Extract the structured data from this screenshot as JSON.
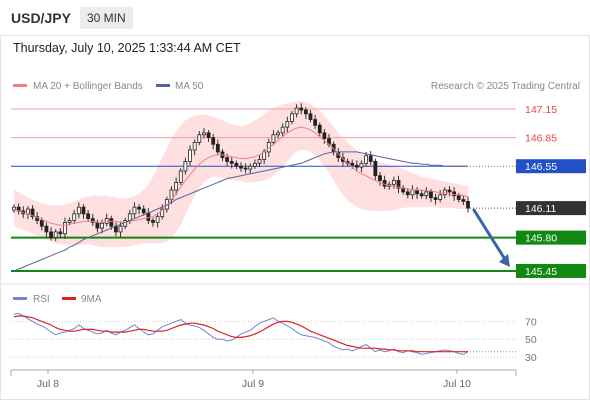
{
  "header": {
    "symbol": "USD/JPY",
    "timeframe": "30 MIN",
    "datetime": "Thursday, July 10, 2025 1:33:44 AM CET"
  },
  "legend": {
    "ma20": "MA 20 + Bollinger Bands",
    "ma50": "MA 50",
    "credit": "Research © 2025 Trading Central",
    "rsi": "RSI",
    "rsi_ma": "9MA"
  },
  "colors": {
    "resistance": "#e44a4a",
    "pivot": "#2250c8",
    "support": "#118811",
    "last": "#333333",
    "ma20": "#f08080",
    "ma50": "#556699",
    "band_fill": "#ffe0e0",
    "arrow": "#3a66a8",
    "rsi": "#6f86d6",
    "rsi_ma": "#dd2222"
  },
  "chart_data": [
    {
      "type": "candlestick",
      "instrument": "USD/JPY",
      "timeframe": "30 MIN",
      "x_labels": [
        "Jul 8",
        "Jul 9",
        "Jul 10"
      ],
      "ylim": [
        145.25,
        147.35
      ],
      "levels": [
        {
          "value": 147.15,
          "label": "147.15",
          "kind": "resistance"
        },
        {
          "value": 146.85,
          "label": "146.85",
          "kind": "resistance"
        },
        {
          "value": 146.55,
          "label": "146.55",
          "kind": "pivot"
        },
        {
          "value": 146.11,
          "label": "146.11",
          "kind": "last"
        },
        {
          "value": 145.8,
          "label": "145.80",
          "kind": "support"
        },
        {
          "value": 145.45,
          "label": "145.45",
          "kind": "support"
        }
      ],
      "close": [
        146.12,
        146.08,
        146.05,
        146.1,
        146.02,
        145.98,
        145.92,
        145.86,
        145.8,
        145.86,
        145.84,
        145.96,
        145.98,
        146.05,
        146.12,
        146.05,
        146.0,
        145.96,
        145.9,
        145.95,
        146.0,
        145.92,
        145.86,
        145.92,
        145.98,
        146.05,
        146.12,
        146.1,
        146.06,
        145.98,
        145.96,
        146.02,
        146.1,
        146.2,
        146.3,
        146.38,
        146.5,
        146.6,
        146.72,
        146.8,
        146.88,
        146.9,
        146.85,
        146.78,
        146.7,
        146.64,
        146.6,
        146.58,
        146.55,
        146.53,
        146.52,
        146.55,
        146.58,
        146.62,
        146.7,
        146.8,
        146.88,
        146.9,
        146.96,
        147.02,
        147.1,
        147.16,
        147.14,
        147.1,
        147.04,
        146.98,
        146.9,
        146.84,
        146.78,
        146.7,
        146.64,
        146.6,
        146.58,
        146.56,
        146.54,
        146.58,
        146.66,
        146.6,
        146.45,
        146.4,
        146.34,
        146.36,
        146.4,
        146.32,
        146.28,
        146.25,
        146.3,
        146.26,
        146.24,
        146.28,
        146.22,
        146.2,
        146.25,
        146.3,
        146.28,
        146.24,
        146.2,
        146.18,
        146.11
      ],
      "ma20": [
        146.1,
        146.08,
        146.06,
        146.05,
        146.03,
        146.01,
        145.99,
        145.97,
        145.95,
        145.94,
        145.93,
        145.93,
        145.94,
        145.95,
        145.96,
        145.97,
        145.97,
        145.97,
        145.96,
        145.96,
        145.97,
        145.97,
        145.97,
        145.96,
        145.96,
        145.97,
        145.98,
        145.99,
        146.0,
        146.01,
        146.02,
        146.05,
        146.09,
        146.14,
        146.2,
        146.26,
        146.33,
        146.4,
        146.46,
        146.52,
        146.57,
        146.61,
        146.64,
        146.66,
        146.67,
        146.67,
        146.66,
        146.65,
        146.64,
        146.63,
        146.63,
        146.64,
        146.65,
        146.67,
        146.7,
        146.74,
        146.78,
        146.82,
        146.86,
        146.9,
        146.93,
        146.95,
        146.96,
        146.95,
        146.93,
        146.9,
        146.86,
        146.82,
        146.78,
        146.73,
        146.68,
        146.63,
        146.58,
        146.54,
        146.5,
        146.47,
        146.45,
        146.42,
        146.4,
        146.38,
        146.36,
        146.35,
        146.34,
        146.33,
        146.32,
        146.31,
        146.3,
        146.3,
        146.3,
        146.29,
        146.29,
        146.28,
        146.27,
        146.27,
        146.26,
        146.25,
        146.25,
        146.24,
        146.23
      ],
      "bb_upper": [
        146.3,
        146.28,
        146.25,
        146.22,
        146.2,
        146.18,
        146.16,
        146.15,
        146.14,
        146.14,
        146.14,
        146.15,
        146.16,
        146.18,
        146.2,
        146.22,
        146.23,
        146.24,
        146.24,
        146.24,
        146.24,
        146.23,
        146.22,
        146.21,
        146.21,
        146.22,
        146.24,
        146.26,
        146.3,
        146.36,
        146.44,
        146.54,
        146.64,
        146.74,
        146.84,
        146.92,
        146.98,
        147.03,
        147.06,
        147.08,
        147.09,
        147.09,
        147.08,
        147.07,
        147.05,
        147.03,
        147.01,
        146.99,
        146.98,
        146.97,
        146.98,
        147.0,
        147.03,
        147.06,
        147.1,
        147.13,
        147.16,
        147.18,
        147.2,
        147.21,
        147.22,
        147.23,
        147.23,
        147.22,
        147.2,
        147.17,
        147.13,
        147.08,
        147.02,
        146.96,
        146.9,
        146.85,
        146.8,
        146.76,
        146.72,
        146.68,
        146.65,
        146.63,
        146.61,
        146.59,
        146.58,
        146.56,
        146.55,
        146.54,
        146.52,
        146.5,
        146.48,
        146.46,
        146.44,
        146.43,
        146.42,
        146.41,
        146.4,
        146.39,
        146.38,
        146.37,
        146.36,
        146.35,
        146.34
      ],
      "bb_lower": [
        145.92,
        145.9,
        145.88,
        145.86,
        145.84,
        145.82,
        145.8,
        145.78,
        145.76,
        145.74,
        145.73,
        145.72,
        145.72,
        145.72,
        145.72,
        145.73,
        145.73,
        145.72,
        145.71,
        145.7,
        145.7,
        145.7,
        145.7,
        145.7,
        145.7,
        145.71,
        145.72,
        145.73,
        145.74,
        145.74,
        145.74,
        145.74,
        145.74,
        145.76,
        145.8,
        145.86,
        145.94,
        146.04,
        146.14,
        146.24,
        146.32,
        146.38,
        146.42,
        146.44,
        146.44,
        146.43,
        146.42,
        146.41,
        146.4,
        146.39,
        146.38,
        146.38,
        146.38,
        146.39,
        146.4,
        146.42,
        146.45,
        146.49,
        146.54,
        146.6,
        146.66,
        146.7,
        146.72,
        146.72,
        146.7,
        146.66,
        146.61,
        146.55,
        146.48,
        146.4,
        146.32,
        146.25,
        146.19,
        146.15,
        146.12,
        146.1,
        146.09,
        146.08,
        146.08,
        146.08,
        146.08,
        146.08,
        146.09,
        146.1,
        146.11,
        146.12,
        146.12,
        146.12,
        146.12,
        146.12,
        146.12,
        146.12,
        146.11,
        146.11,
        146.11,
        146.11,
        146.1,
        146.1,
        146.1
      ],
      "ma50": [
        145.45,
        145.47,
        145.49,
        145.51,
        145.53,
        145.55,
        145.57,
        145.59,
        145.61,
        145.63,
        145.65,
        145.67,
        145.7,
        145.72,
        145.75,
        145.78,
        145.8,
        145.82,
        145.84,
        145.86,
        145.88,
        145.9,
        145.92,
        145.94,
        145.96,
        145.98,
        146.0,
        146.02,
        146.04,
        146.06,
        146.08,
        146.1,
        146.12,
        146.14,
        146.17,
        146.2,
        146.22,
        146.24,
        146.26,
        146.28,
        146.3,
        146.32,
        146.34,
        146.36,
        146.38,
        146.4,
        146.42,
        146.43,
        146.44,
        146.45,
        146.46,
        146.47,
        146.48,
        146.49,
        146.5,
        146.51,
        146.52,
        146.53,
        146.54,
        146.55,
        146.56,
        146.57,
        146.58,
        146.6,
        146.62,
        146.64,
        146.66,
        146.68,
        146.69,
        146.7,
        146.7,
        146.7,
        146.7,
        146.7,
        146.7,
        146.69,
        146.68,
        146.67,
        146.66,
        146.65,
        146.64,
        146.63,
        146.62,
        146.61,
        146.6,
        146.59,
        146.58,
        146.58,
        146.57,
        146.57,
        146.56,
        146.56,
        146.56,
        146.55,
        146.55,
        146.55,
        146.55,
        146.55,
        146.55
      ]
    },
    {
      "type": "line",
      "title": "RSI",
      "ylim": [
        20,
        85
      ],
      "y_ticks": [
        30,
        50,
        70
      ],
      "series": [
        {
          "name": "RSI",
          "values": [
            78,
            79,
            76,
            73,
            70,
            67,
            65,
            62,
            58,
            55,
            57,
            58,
            60,
            62,
            66,
            62,
            60,
            58,
            56,
            57,
            60,
            57,
            55,
            58,
            60,
            63,
            66,
            62,
            58,
            55,
            56,
            60,
            64,
            66,
            68,
            70,
            72,
            68,
            66,
            65,
            63,
            60,
            56,
            52,
            50,
            50,
            48,
            49,
            52,
            56,
            58,
            60,
            64,
            68,
            70,
            72,
            74,
            70,
            68,
            65,
            62,
            58,
            55,
            54,
            53,
            52,
            50,
            48,
            46,
            42,
            40,
            38,
            39,
            37,
            39,
            42,
            44,
            40,
            36,
            38,
            36,
            37,
            39,
            36,
            35,
            37,
            36,
            35,
            33,
            34,
            35,
            36,
            37,
            38,
            37,
            36,
            34,
            33,
            36
          ]
        },
        {
          "name": "9MA",
          "values": [
            75,
            76,
            76,
            75,
            74,
            72,
            70,
            68,
            66,
            63,
            61,
            60,
            59,
            59,
            60,
            61,
            61,
            61,
            60,
            59,
            59,
            58,
            58,
            58,
            58,
            59,
            60,
            61,
            61,
            60,
            59,
            59,
            59,
            60,
            62,
            64,
            66,
            67,
            68,
            68,
            67,
            66,
            64,
            62,
            59,
            57,
            55,
            53,
            52,
            52,
            53,
            54,
            56,
            58,
            61,
            64,
            67,
            69,
            70,
            70,
            69,
            67,
            65,
            62,
            59,
            57,
            55,
            53,
            51,
            49,
            47,
            45,
            43,
            42,
            41,
            40,
            40,
            40,
            40,
            39,
            39,
            38,
            38,
            37,
            37,
            37,
            37,
            36,
            36,
            36,
            36,
            36,
            36,
            36,
            36,
            36,
            36,
            36,
            36
          ]
        }
      ]
    }
  ]
}
